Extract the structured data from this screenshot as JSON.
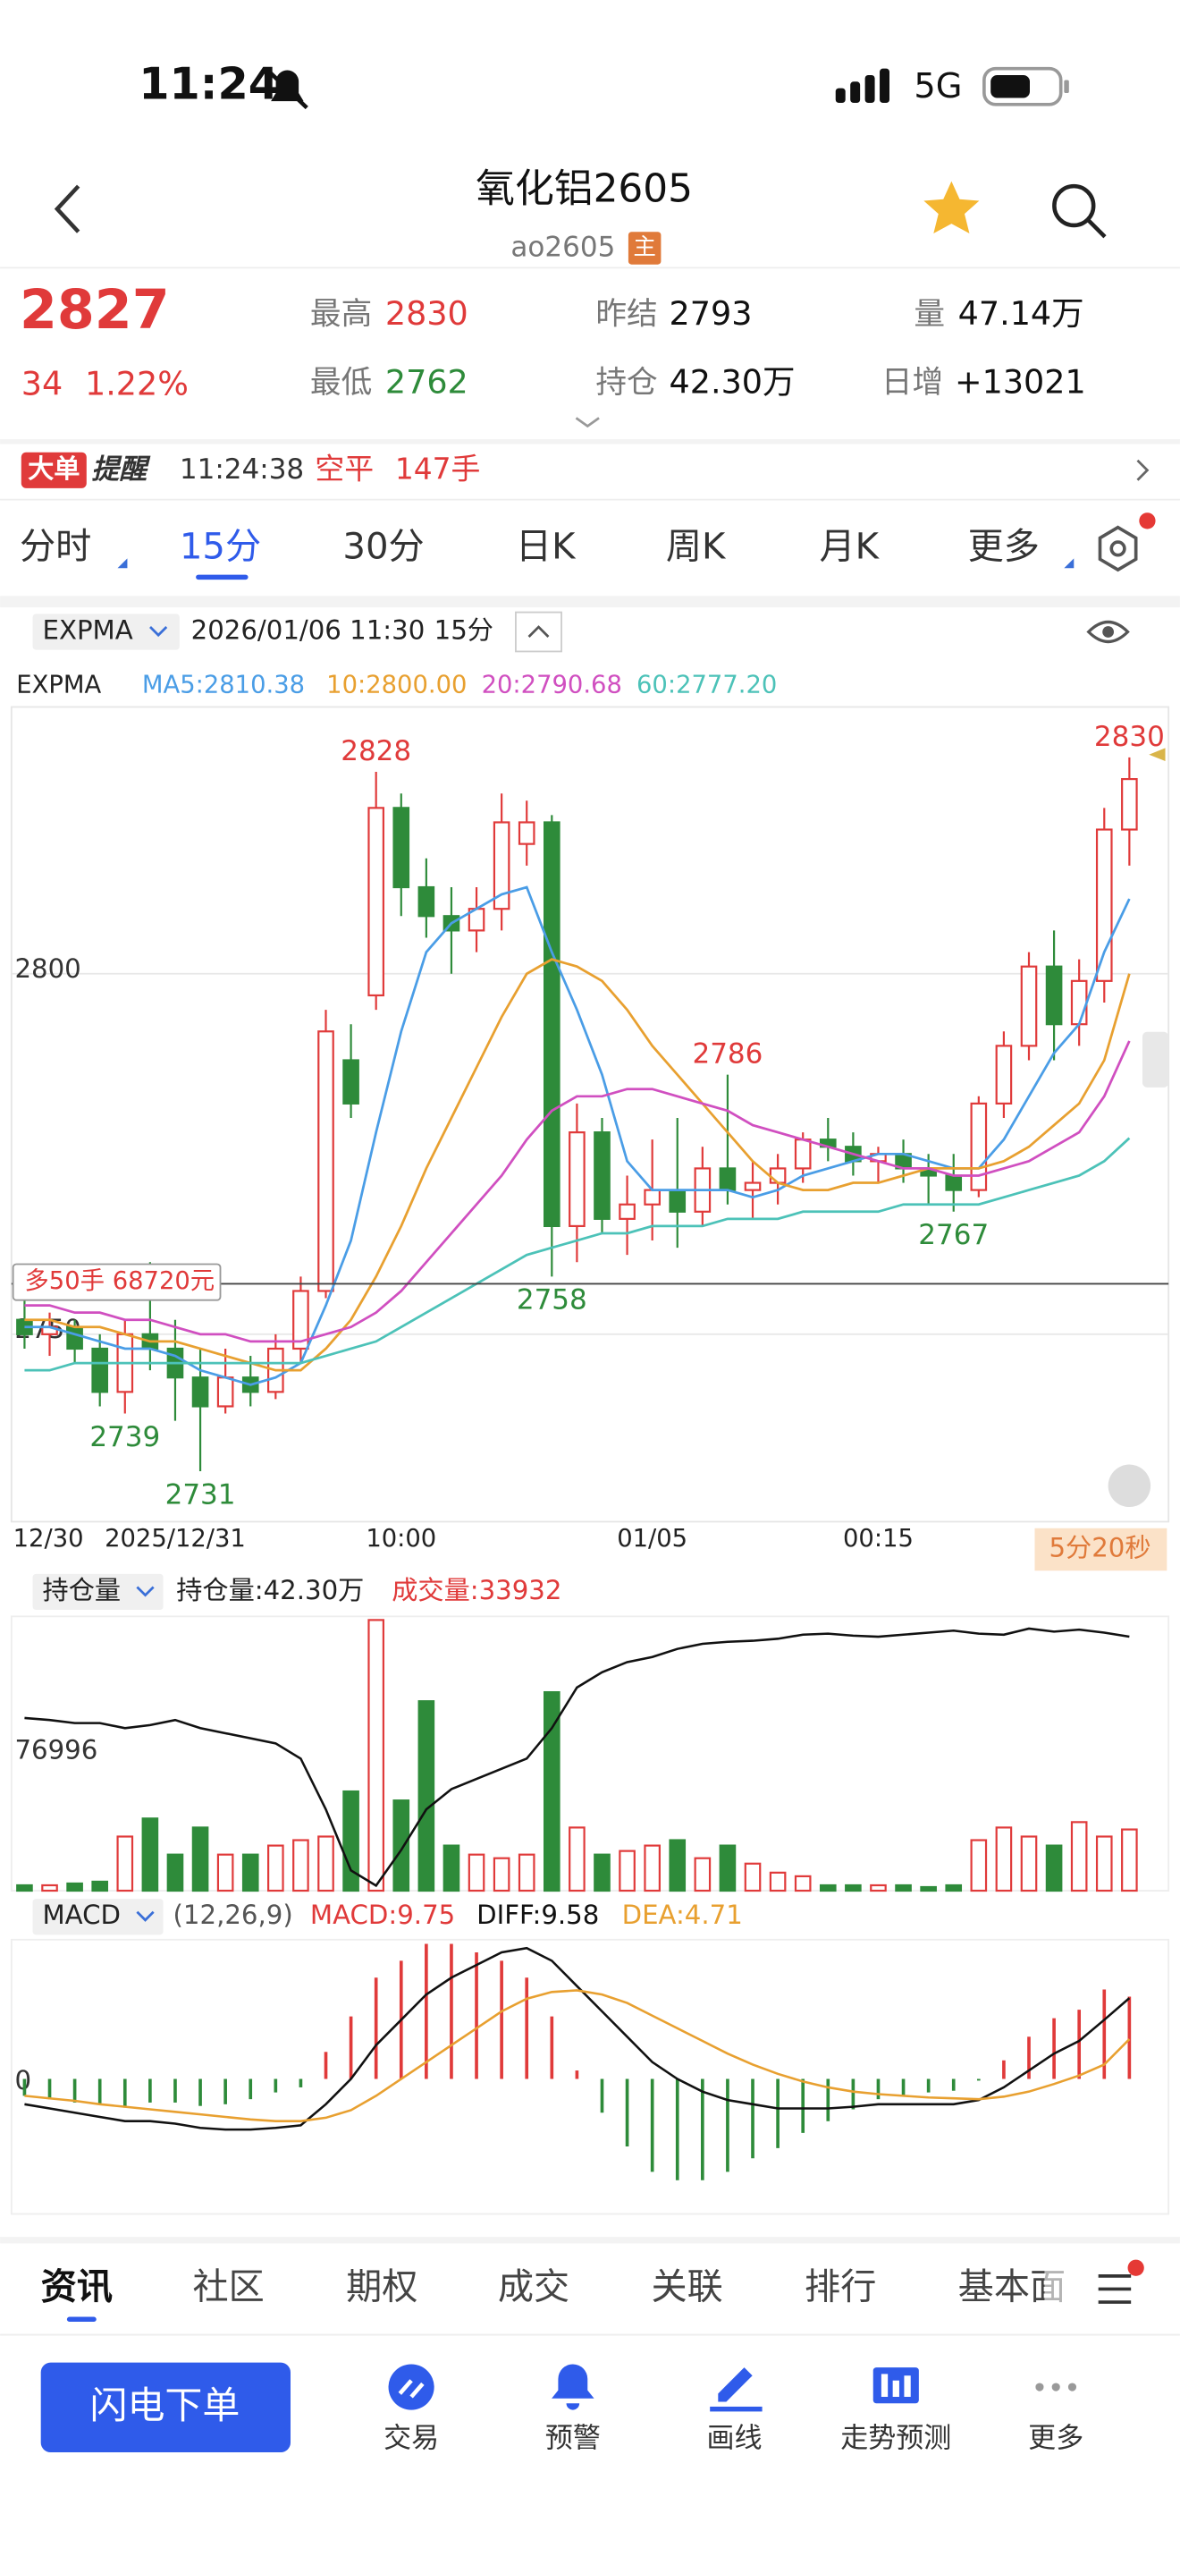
{
  "status_bar": {
    "time": "11:24",
    "network": "5G"
  },
  "header": {
    "title": "氧化铝2605",
    "code": "ao2605",
    "badge": "主"
  },
  "quote": {
    "price": "2827",
    "change": "34",
    "change_pct": "1.22%",
    "high_label": "最高",
    "high": "2830",
    "low_label": "最低",
    "low": "2762",
    "settle_label": "昨结",
    "settle": "2793",
    "oi_label": "持仓",
    "oi": "42.30万",
    "vol_label": "量",
    "vol": "47.14万",
    "inc_label": "日增",
    "inc": "+13021"
  },
  "alert": {
    "tag": "大单",
    "title": "提醒",
    "time": "11:24:38",
    "action": "空平",
    "qty": "147手"
  },
  "period_tabs": {
    "items": [
      "分时",
      "15分",
      "30分",
      "日K",
      "周K",
      "月K",
      "更多"
    ],
    "active": 1
  },
  "chart_data": [
    {
      "type": "candlestick",
      "indicator": "EXPMA",
      "datetime": "2026/01/06 11:30",
      "period": "15分",
      "legend_title": "EXPMA",
      "legend": [
        "MA5:2810.38",
        "10:2800.00",
        "20:2790.68",
        "60:2777.20"
      ],
      "up_color": "#e03a3a",
      "down_color": "#2e8b3a",
      "categories": [
        "12/30",
        null,
        null,
        null,
        null,
        null,
        "2025/12/31",
        null,
        null,
        null,
        null,
        null,
        null,
        null,
        null,
        "10:00",
        null,
        null,
        null,
        null,
        null,
        null,
        null,
        null,
        null,
        "01/05",
        null,
        null,
        null,
        null,
        null,
        null,
        null,
        null,
        "00:15",
        null,
        null,
        null,
        null,
        null,
        null,
        null,
        null,
        null,
        null
      ],
      "candles": [
        [
          2752,
          2756,
          2748,
          2750
        ],
        [
          2750,
          2753,
          2747,
          2751
        ],
        [
          2751,
          2752,
          2746,
          2748
        ],
        [
          2748,
          2750,
          2740,
          2742
        ],
        [
          2742,
          2752,
          2739,
          2750
        ],
        [
          2750,
          2760,
          2745,
          2748
        ],
        [
          2748,
          2752,
          2738,
          2744
        ],
        [
          2744,
          2748,
          2731,
          2740
        ],
        [
          2740,
          2748,
          2739,
          2744
        ],
        [
          2744,
          2747,
          2740,
          2742
        ],
        [
          2742,
          2750,
          2741,
          2748
        ],
        [
          2748,
          2758,
          2746,
          2756
        ],
        [
          2756,
          2795,
          2755,
          2792
        ],
        [
          2788,
          2793,
          2780,
          2782
        ],
        [
          2797,
          2828,
          2795,
          2823
        ],
        [
          2823,
          2825,
          2808,
          2812
        ],
        [
          2812,
          2816,
          2805,
          2808
        ],
        [
          2808,
          2812,
          2800,
          2806
        ],
        [
          2806,
          2812,
          2803,
          2809
        ],
        [
          2809,
          2825,
          2806,
          2821
        ],
        [
          2818,
          2824,
          2815,
          2821
        ],
        [
          2821,
          2822,
          2758,
          2765
        ],
        [
          2765,
          2782,
          2760,
          2778
        ],
        [
          2778,
          2780,
          2764,
          2766
        ],
        [
          2766,
          2772,
          2761,
          2768
        ],
        [
          2768,
          2777,
          2763,
          2770
        ],
        [
          2770,
          2780,
          2762,
          2767
        ],
        [
          2767,
          2776,
          2765,
          2773
        ],
        [
          2773,
          2786,
          2768,
          2770
        ],
        [
          2770,
          2774,
          2766,
          2771
        ],
        [
          2771,
          2775,
          2768,
          2773
        ],
        [
          2773,
          2778,
          2771,
          2777
        ],
        [
          2777,
          2780,
          2774,
          2776
        ],
        [
          2776,
          2778,
          2772,
          2774
        ],
        [
          2774,
          2776,
          2771,
          2775
        ],
        [
          2775,
          2777,
          2771,
          2773
        ],
        [
          2773,
          2775,
          2768,
          2772
        ],
        [
          2772,
          2775,
          2767,
          2770
        ],
        [
          2770,
          2783,
          2769,
          2782
        ],
        [
          2782,
          2792,
          2780,
          2790
        ],
        [
          2790,
          2803,
          2788,
          2801
        ],
        [
          2801,
          2806,
          2788,
          2793
        ],
        [
          2793,
          2802,
          2790,
          2799
        ],
        [
          2799,
          2823,
          2796,
          2820
        ],
        [
          2820,
          2830,
          2815,
          2827
        ]
      ],
      "series": [
        {
          "color": "#4a9de6",
          "values": [
            2751,
            2751,
            2750,
            2749,
            2748,
            2748,
            2747,
            2745,
            2744,
            2743,
            2744,
            2746,
            2754,
            2763,
            2778,
            2792,
            2803,
            2807,
            2809,
            2811,
            2812,
            2803,
            2795,
            2786,
            2774,
            2770,
            2770,
            2770,
            2770,
            2769,
            2770,
            2772,
            2773,
            2774,
            2775,
            2775,
            2774,
            2773,
            2773,
            2777,
            2783,
            2789,
            2793,
            2803,
            2810.38
          ]
        },
        {
          "color": "#e8a030",
          "values": [
            2752,
            2752,
            2751,
            2751,
            2750,
            2749,
            2749,
            2748,
            2747,
            2746,
            2745,
            2745,
            2748,
            2752,
            2758,
            2765,
            2773,
            2780,
            2787,
            2794,
            2800,
            2802,
            2801,
            2799,
            2795,
            2790,
            2786,
            2782,
            2778,
            2774,
            2771,
            2770,
            2770,
            2771,
            2771,
            2772,
            2773,
            2773,
            2773,
            2774,
            2776,
            2779,
            2782,
            2788,
            2800
          ]
        },
        {
          "color": "#d04fc0",
          "values": [
            2754,
            2754,
            2753,
            2753,
            2752,
            2752,
            2751,
            2750,
            2750,
            2749,
            2749,
            2749,
            2750,
            2751,
            2753,
            2756,
            2760,
            2764,
            2768,
            2772,
            2777,
            2781,
            2783,
            2783,
            2784,
            2784,
            2783,
            2782,
            2781,
            2779,
            2778,
            2777,
            2776,
            2775,
            2774,
            2773,
            2773,
            2772,
            2772,
            2773,
            2774,
            2776,
            2778,
            2783,
            2790.68
          ]
        },
        {
          "color": "#4cc2b8",
          "values": [
            2745,
            2745,
            2746,
            2746,
            2746,
            2746,
            2746,
            2746,
            2746,
            2746,
            2746,
            2746,
            2747,
            2748,
            2749,
            2751,
            2753,
            2755,
            2757,
            2759,
            2761,
            2762,
            2763,
            2764,
            2764,
            2765,
            2765,
            2765,
            2766,
            2766,
            2766,
            2767,
            2767,
            2767,
            2767,
            2768,
            2768,
            2768,
            2768,
            2769,
            2770,
            2771,
            2772,
            2774,
            2777.2
          ]
        }
      ],
      "ylim": [
        2724,
        2837
      ],
      "yticks": [
        2800,
        2750
      ],
      "grid": true,
      "annotations": [
        {
          "at": 14,
          "side": "high",
          "text": "2828"
        },
        {
          "at": 4,
          "side": "low",
          "text": "2739"
        },
        {
          "at": 7,
          "side": "low",
          "text": "2731"
        },
        {
          "at": 21,
          "side": "low",
          "text": "2758"
        },
        {
          "at": 28,
          "side": "high",
          "text": "2786"
        },
        {
          "at": 37,
          "side": "low",
          "text": "2767"
        },
        {
          "at": 44,
          "side": "high",
          "text": "2830"
        }
      ],
      "position_line": {
        "value": 2757,
        "label": "多50手 68720元"
      },
      "countdown": "5分20秒"
    },
    {
      "type": "volume",
      "indicator": "持仓量",
      "oi_label": "持仓量:42.30万",
      "volume_label": "成交量:33932",
      "values": [
        3000,
        3000,
        4000,
        5000,
        30000,
        40000,
        20000,
        35000,
        20000,
        20000,
        25000,
        28000,
        30000,
        55000,
        150000,
        50000,
        105000,
        25000,
        20000,
        18000,
        20000,
        110000,
        35000,
        20000,
        22000,
        25000,
        28000,
        18000,
        25000,
        15000,
        10000,
        8000,
        3000,
        3000,
        3000,
        3000,
        2000,
        3000,
        28000,
        35000,
        30000,
        25000,
        38000,
        30000,
        33932
      ],
      "ylim": [
        0,
        152000
      ],
      "yticks": [
        76996
      ],
      "oi": {
        "color": "#111111",
        "axis": "y2",
        "values": [
          415000,
          414800,
          414500,
          414500,
          414000,
          414300,
          414800,
          414000,
          413500,
          413000,
          412500,
          411000,
          406000,
          400000,
          398500,
          402000,
          406000,
          408000,
          409000,
          410000,
          411000,
          414000,
          418000,
          419500,
          420500,
          421000,
          421800,
          422300,
          422500,
          422600,
          422800,
          423200,
          423300,
          423100,
          423000,
          423200,
          423400,
          423600,
          423300,
          423200,
          423800,
          423500,
          423700,
          423400,
          423000
        ]
      },
      "y2lim": [
        398000,
        425000
      ]
    },
    {
      "type": "macd",
      "indicator": "MACD",
      "params": "(12,26,9)",
      "labels": [
        "MACD:9.75",
        "DIFF:9.58",
        "DEA:4.71"
      ],
      "macd": [
        -2,
        -2.4,
        -2.8,
        -3,
        -3.4,
        -2.8,
        -2.8,
        -3.2,
        -3,
        -2.4,
        -1.6,
        -1,
        3.2,
        7.4,
        12,
        14,
        16,
        16,
        15,
        14,
        12,
        7.4,
        1,
        -4,
        -8,
        -11,
        -12,
        -12,
        -11,
        -9.4,
        -8.2,
        -6.4,
        -5,
        -3.6,
        -2.4,
        -2,
        -1.6,
        -1.4,
        -0.2,
        2.2,
        5,
        7.2,
        8.2,
        10.6,
        9.75
      ],
      "diff": {
        "color": "#111111",
        "values": [
          -3,
          -3.5,
          -4,
          -4.5,
          -5,
          -5,
          -5.3,
          -5.8,
          -6,
          -6,
          -5.8,
          -5.5,
          -3,
          0,
          4,
          7,
          10,
          12,
          13.5,
          15,
          15.5,
          14,
          11,
          8,
          5,
          2,
          0,
          -1.5,
          -2.5,
          -3,
          -3.5,
          -3.5,
          -3.5,
          -3.3,
          -3,
          -3,
          -3,
          -3,
          -2.5,
          -1,
          1,
          3,
          4.5,
          7,
          9.58
        ]
      },
      "dea": {
        "color": "#e8a030",
        "values": [
          -2,
          -2.3,
          -2.6,
          -3,
          -3.3,
          -3.6,
          -3.9,
          -4.2,
          -4.5,
          -4.8,
          -5,
          -5,
          -4.6,
          -3.7,
          -2,
          0,
          2,
          4,
          6,
          8,
          9.5,
          10.3,
          10.5,
          10,
          9,
          7.5,
          6,
          4.5,
          3,
          1.7,
          0.6,
          -0.3,
          -1,
          -1.5,
          -1.8,
          -2,
          -2.2,
          -2.3,
          -2.4,
          -2.1,
          -1.5,
          -0.6,
          0.4,
          1.7,
          4.71
        ]
      },
      "ylim": [
        -16,
        16.5
      ],
      "yticks": [
        0
      ]
    }
  ],
  "bottom_tabs": {
    "items": [
      "资讯",
      "社区",
      "期权",
      "成交",
      "关联",
      "排行",
      "基本面"
    ],
    "active": 0
  },
  "actions": {
    "order": "闪电下单",
    "items": [
      "交易",
      "预警",
      "画线",
      "走势预测",
      "更多"
    ]
  }
}
